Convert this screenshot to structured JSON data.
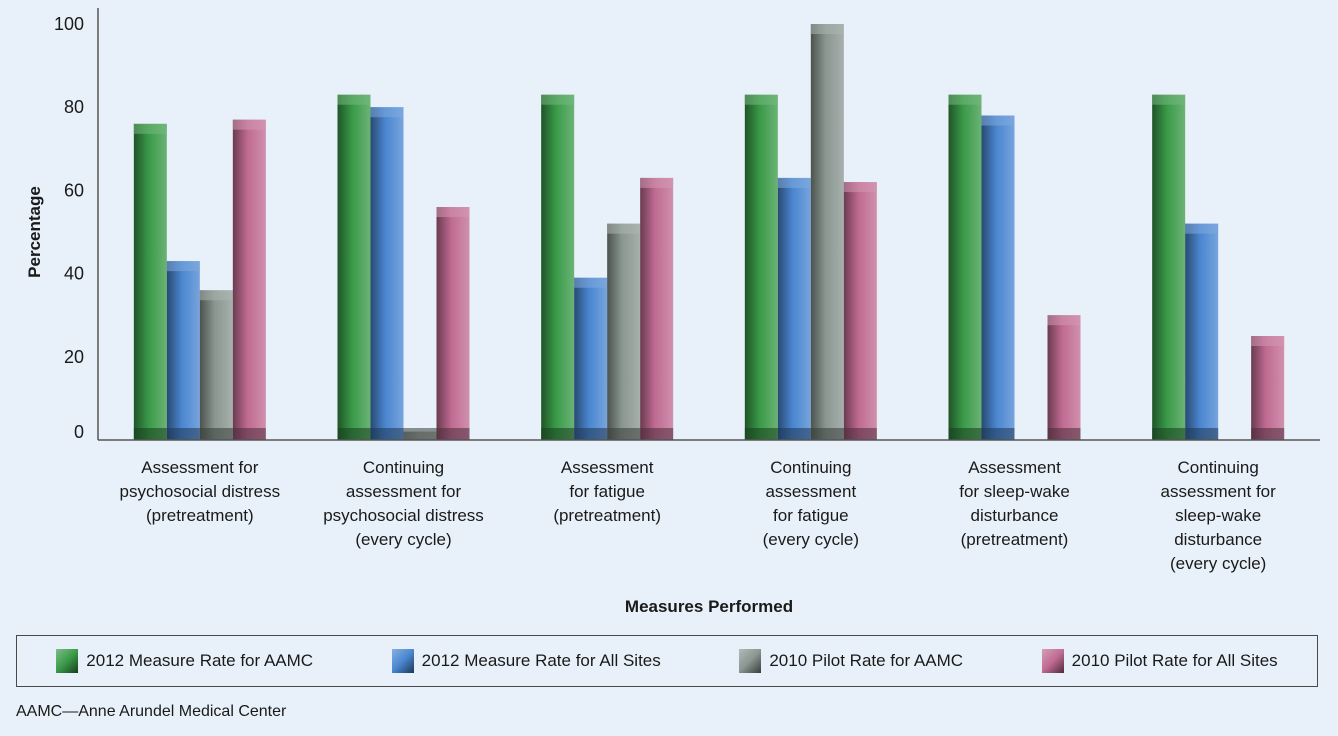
{
  "chart_data": {
    "type": "bar",
    "ylabel": "Percentage",
    "xlabel": "Measures Performed",
    "ylim": [
      0,
      100
    ],
    "yticks": [
      0,
      20,
      40,
      60,
      80,
      100
    ],
    "grid": false,
    "legend_position": "bottom",
    "categories": [
      [
        "Assessment for",
        "psychosocial distress",
        "(pretreatment)"
      ],
      [
        "Continuing",
        "assessment for",
        "psychosocial distress",
        "(every cycle)"
      ],
      [
        "Assessment",
        "for fatigue",
        "(pretreatment)"
      ],
      [
        "Continuing",
        "assessment",
        "for fatigue",
        "(every cycle)"
      ],
      [
        "Assessment",
        "for sleep-wake",
        "disturbance",
        "(pretreatment)"
      ],
      [
        "Continuing",
        "assessment for",
        "sleep-wake",
        "disturbance",
        "(every cycle)"
      ]
    ],
    "series": [
      {
        "name": "2012 Measure Rate for AAMC",
        "color": "#3a9a48",
        "values": [
          76,
          83,
          83,
          83,
          83,
          83
        ]
      },
      {
        "name": "2012 Measure Rate for All Sites",
        "color": "#4a86d0",
        "values": [
          43,
          80,
          39,
          63,
          78,
          52
        ]
      },
      {
        "name": "2010 Pilot Rate for AAMC",
        "color": "#8a9690",
        "values": [
          36,
          2,
          52,
          100,
          null,
          null
        ]
      },
      {
        "name": "2010 Pilot Rate for All Sites",
        "color": "#c06b92",
        "values": [
          77,
          56,
          63,
          62,
          30,
          25
        ]
      }
    ]
  },
  "footnote": "AAMC—Anne Arundel Medical Center"
}
